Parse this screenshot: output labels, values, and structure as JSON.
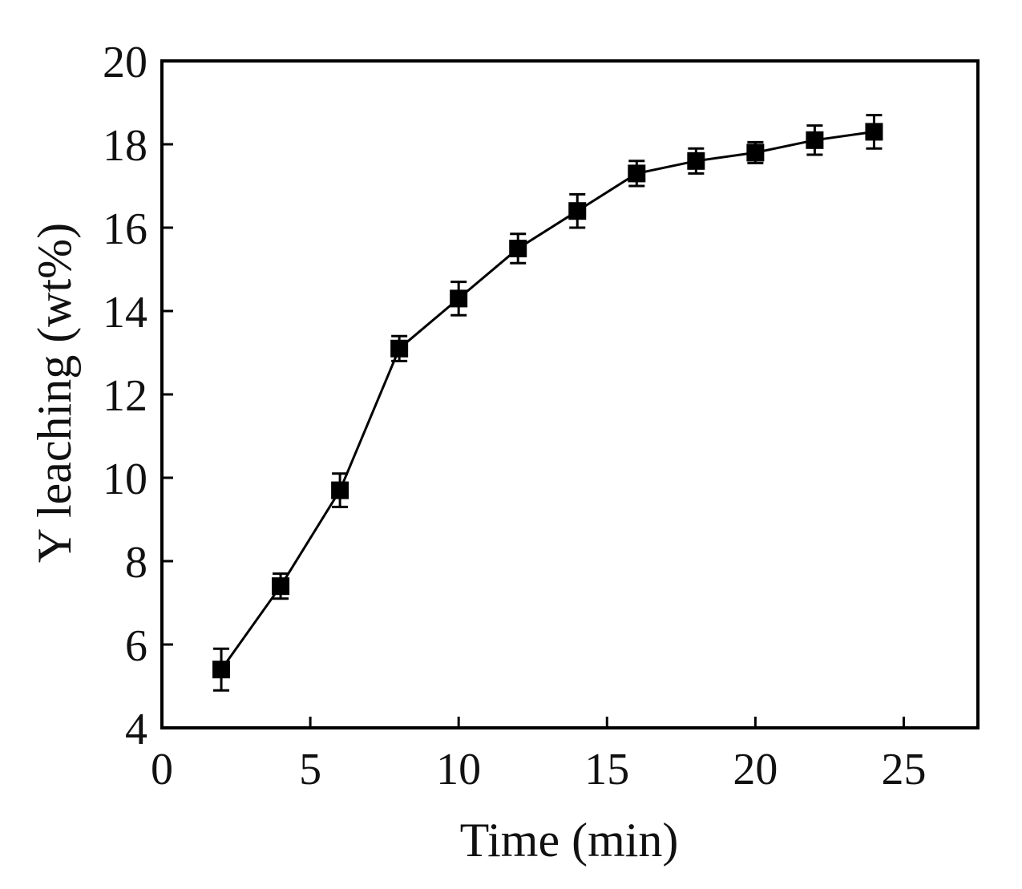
{
  "chart_data": {
    "type": "line",
    "title": "",
    "xlabel": "Time (min)",
    "ylabel": "Y leaching (wt%)",
    "xlim": [
      0,
      27.5
    ],
    "ylim": [
      4,
      20
    ],
    "xticks": [
      0,
      5,
      10,
      15,
      20,
      25
    ],
    "yticks": [
      4,
      6,
      8,
      10,
      12,
      14,
      16,
      18,
      20
    ],
    "grid": false,
    "legend": "none",
    "series": [
      {
        "marker": "square",
        "color": "#000000",
        "x": [
          2,
          4,
          6,
          8,
          10,
          12,
          14,
          16,
          18,
          20,
          22,
          24
        ],
        "y": [
          5.4,
          7.4,
          9.7,
          13.1,
          14.3,
          15.5,
          16.4,
          17.3,
          17.6,
          17.8,
          18.1,
          18.3
        ],
        "error": [
          0.5,
          0.3,
          0.4,
          0.3,
          0.4,
          0.35,
          0.4,
          0.3,
          0.3,
          0.25,
          0.35,
          0.4
        ]
      }
    ]
  }
}
